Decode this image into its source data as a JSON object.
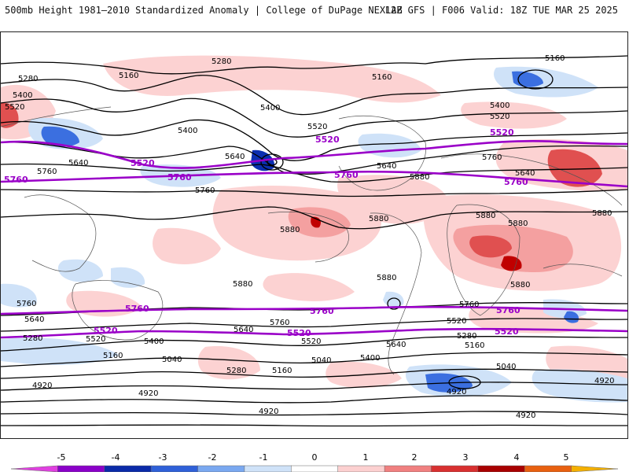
{
  "header": {
    "title": "500mb Height 1981–2010 Standardized Anomaly | College of DuPage NEXLAB",
    "run": "12Z GFS | F006 Valid: 18Z TUE MAR 25 2025"
  },
  "map": {
    "contour_labels_black": [
      "5280",
      "5160",
      "5400",
      "5520",
      "5640",
      "5760",
      "5880",
      "5040",
      "4920"
    ],
    "contour_labels_purple": [
      "5520",
      "5760"
    ],
    "colors": {
      "pos1": "#fcd0d0",
      "pos2": "#f4a0a0",
      "pos3": "#e05050",
      "pos4": "#c00000",
      "neg1": "#cfe2f8",
      "neg2": "#9ec6f2",
      "neg3": "#3b6fe0",
      "neg4": "#0b2fb0",
      "contour": "#000000",
      "highlight_contour": "#9a00c8"
    }
  },
  "colorbar": {
    "ticks": [
      "-5",
      "-4",
      "-3",
      "-2",
      "-1",
      "0",
      "1",
      "2",
      "3",
      "4",
      "5"
    ],
    "colors": [
      "#e040e0",
      "#8a00c8",
      "#0a2aa8",
      "#2f60d8",
      "#7aa8f0",
      "#cfe2f8",
      "#ffffff",
      "#fcd0d0",
      "#f08080",
      "#d83030",
      "#a80000",
      "#e86010",
      "#f4b000"
    ]
  }
}
